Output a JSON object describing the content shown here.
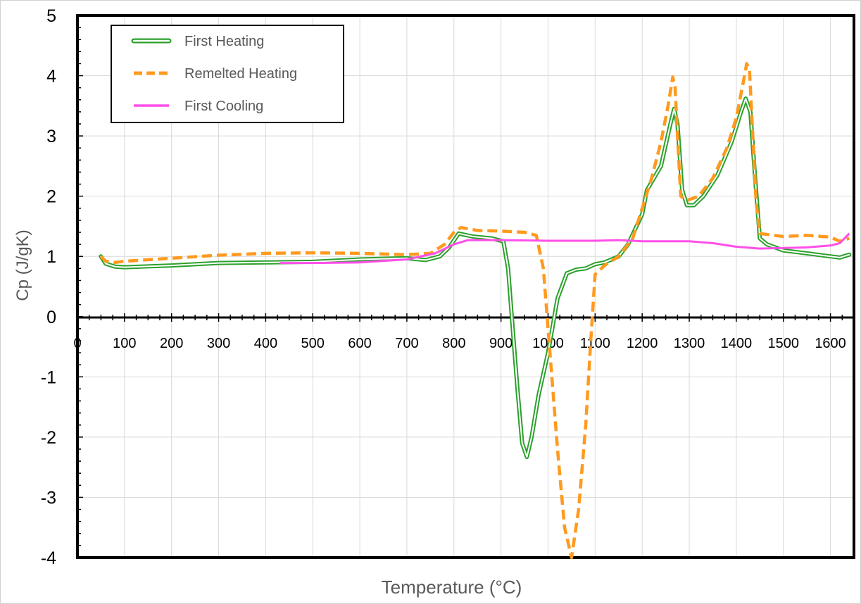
{
  "chart_data": {
    "type": "line",
    "title": "",
    "xlabel": "Temperature (°C)",
    "ylabel": "Cp (J/gK)",
    "xlim": [
      0,
      1650
    ],
    "ylim": [
      -4,
      5
    ],
    "x_ticks": [
      "0",
      "100",
      "200",
      "300",
      "400",
      "500",
      "600",
      "700",
      "800",
      "900",
      "1000",
      "1100",
      "1200",
      "1300",
      "1400",
      "1500",
      "1600"
    ],
    "y_ticks": [
      "5",
      "4",
      "3",
      "2",
      "1",
      "0",
      "-1",
      "-2",
      "-3",
      "-4"
    ],
    "grid": true,
    "legend_position": "top-left",
    "series": [
      {
        "name": "First Heating",
        "color": "#2ca02c",
        "style": "double",
        "points": [
          [
            50,
            1.0
          ],
          [
            60,
            0.88
          ],
          [
            80,
            0.83
          ],
          [
            100,
            0.82
          ],
          [
            200,
            0.85
          ],
          [
            300,
            0.89
          ],
          [
            400,
            0.9
          ],
          [
            500,
            0.91
          ],
          [
            600,
            0.95
          ],
          [
            700,
            0.97
          ],
          [
            740,
            0.94
          ],
          [
            770,
            1.0
          ],
          [
            790,
            1.15
          ],
          [
            810,
            1.38
          ],
          [
            840,
            1.33
          ],
          [
            880,
            1.3
          ],
          [
            905,
            1.25
          ],
          [
            915,
            0.8
          ],
          [
            925,
            -0.2
          ],
          [
            935,
            -1.2
          ],
          [
            945,
            -2.1
          ],
          [
            955,
            -2.33
          ],
          [
            965,
            -2.0
          ],
          [
            980,
            -1.3
          ],
          [
            1000,
            -0.6
          ],
          [
            1020,
            0.3
          ],
          [
            1040,
            0.72
          ],
          [
            1060,
            0.78
          ],
          [
            1080,
            0.8
          ],
          [
            1100,
            0.87
          ],
          [
            1120,
            0.9
          ],
          [
            1150,
            1.0
          ],
          [
            1170,
            1.2
          ],
          [
            1200,
            1.7
          ],
          [
            1210,
            2.1
          ],
          [
            1240,
            2.5
          ],
          [
            1260,
            3.2
          ],
          [
            1268,
            3.45
          ],
          [
            1275,
            3.2
          ],
          [
            1285,
            2.1
          ],
          [
            1295,
            1.85
          ],
          [
            1310,
            1.85
          ],
          [
            1330,
            2.0
          ],
          [
            1360,
            2.35
          ],
          [
            1390,
            2.9
          ],
          [
            1410,
            3.4
          ],
          [
            1420,
            3.62
          ],
          [
            1430,
            3.4
          ],
          [
            1440,
            2.3
          ],
          [
            1450,
            1.3
          ],
          [
            1465,
            1.2
          ],
          [
            1500,
            1.1
          ],
          [
            1550,
            1.05
          ],
          [
            1600,
            1.0
          ],
          [
            1620,
            0.98
          ],
          [
            1640,
            1.03
          ]
        ]
      },
      {
        "name": "Remelted Heating",
        "color": "#ff9a1f",
        "style": "dashed",
        "points": [
          [
            50,
            1.0
          ],
          [
            60,
            0.92
          ],
          [
            80,
            0.9
          ],
          [
            100,
            0.92
          ],
          [
            200,
            0.97
          ],
          [
            300,
            1.02
          ],
          [
            400,
            1.05
          ],
          [
            500,
            1.06
          ],
          [
            600,
            1.05
          ],
          [
            700,
            1.03
          ],
          [
            750,
            1.05
          ],
          [
            780,
            1.2
          ],
          [
            800,
            1.4
          ],
          [
            815,
            1.48
          ],
          [
            850,
            1.43
          ],
          [
            900,
            1.42
          ],
          [
            950,
            1.4
          ],
          [
            975,
            1.35
          ],
          [
            990,
            0.8
          ],
          [
            1000,
            -0.2
          ],
          [
            1010,
            -1.2
          ],
          [
            1020,
            -2.2
          ],
          [
            1035,
            -3.5
          ],
          [
            1050,
            -4.0
          ],
          [
            1065,
            -3.2
          ],
          [
            1080,
            -1.8
          ],
          [
            1090,
            -0.5
          ],
          [
            1100,
            0.7
          ],
          [
            1120,
            0.85
          ],
          [
            1150,
            1.0
          ],
          [
            1180,
            1.3
          ],
          [
            1200,
            1.8
          ],
          [
            1220,
            2.3
          ],
          [
            1240,
            2.9
          ],
          [
            1255,
            3.5
          ],
          [
            1265,
            3.98
          ],
          [
            1270,
            3.8
          ],
          [
            1275,
            3.0
          ],
          [
            1282,
            2.0
          ],
          [
            1295,
            1.93
          ],
          [
            1320,
            2.0
          ],
          [
            1350,
            2.3
          ],
          [
            1380,
            2.8
          ],
          [
            1400,
            3.3
          ],
          [
            1415,
            3.9
          ],
          [
            1422,
            4.2
          ],
          [
            1428,
            4.1
          ],
          [
            1435,
            3.0
          ],
          [
            1442,
            1.9
          ],
          [
            1450,
            1.38
          ],
          [
            1500,
            1.33
          ],
          [
            1550,
            1.35
          ],
          [
            1600,
            1.32
          ],
          [
            1620,
            1.25
          ],
          [
            1640,
            1.3
          ]
        ]
      },
      {
        "name": "First Cooling",
        "color": "#ff4fe8",
        "style": "solid",
        "points": [
          [
            430,
            0.89
          ],
          [
            500,
            0.89
          ],
          [
            600,
            0.9
          ],
          [
            700,
            0.95
          ],
          [
            760,
            1.05
          ],
          [
            800,
            1.2
          ],
          [
            830,
            1.27
          ],
          [
            900,
            1.27
          ],
          [
            1000,
            1.26
          ],
          [
            1100,
            1.26
          ],
          [
            1150,
            1.27
          ],
          [
            1200,
            1.25
          ],
          [
            1300,
            1.25
          ],
          [
            1350,
            1.22
          ],
          [
            1400,
            1.16
          ],
          [
            1450,
            1.13
          ],
          [
            1500,
            1.14
          ],
          [
            1550,
            1.15
          ],
          [
            1600,
            1.18
          ],
          [
            1620,
            1.22
          ],
          [
            1640,
            1.38
          ]
        ]
      }
    ]
  }
}
